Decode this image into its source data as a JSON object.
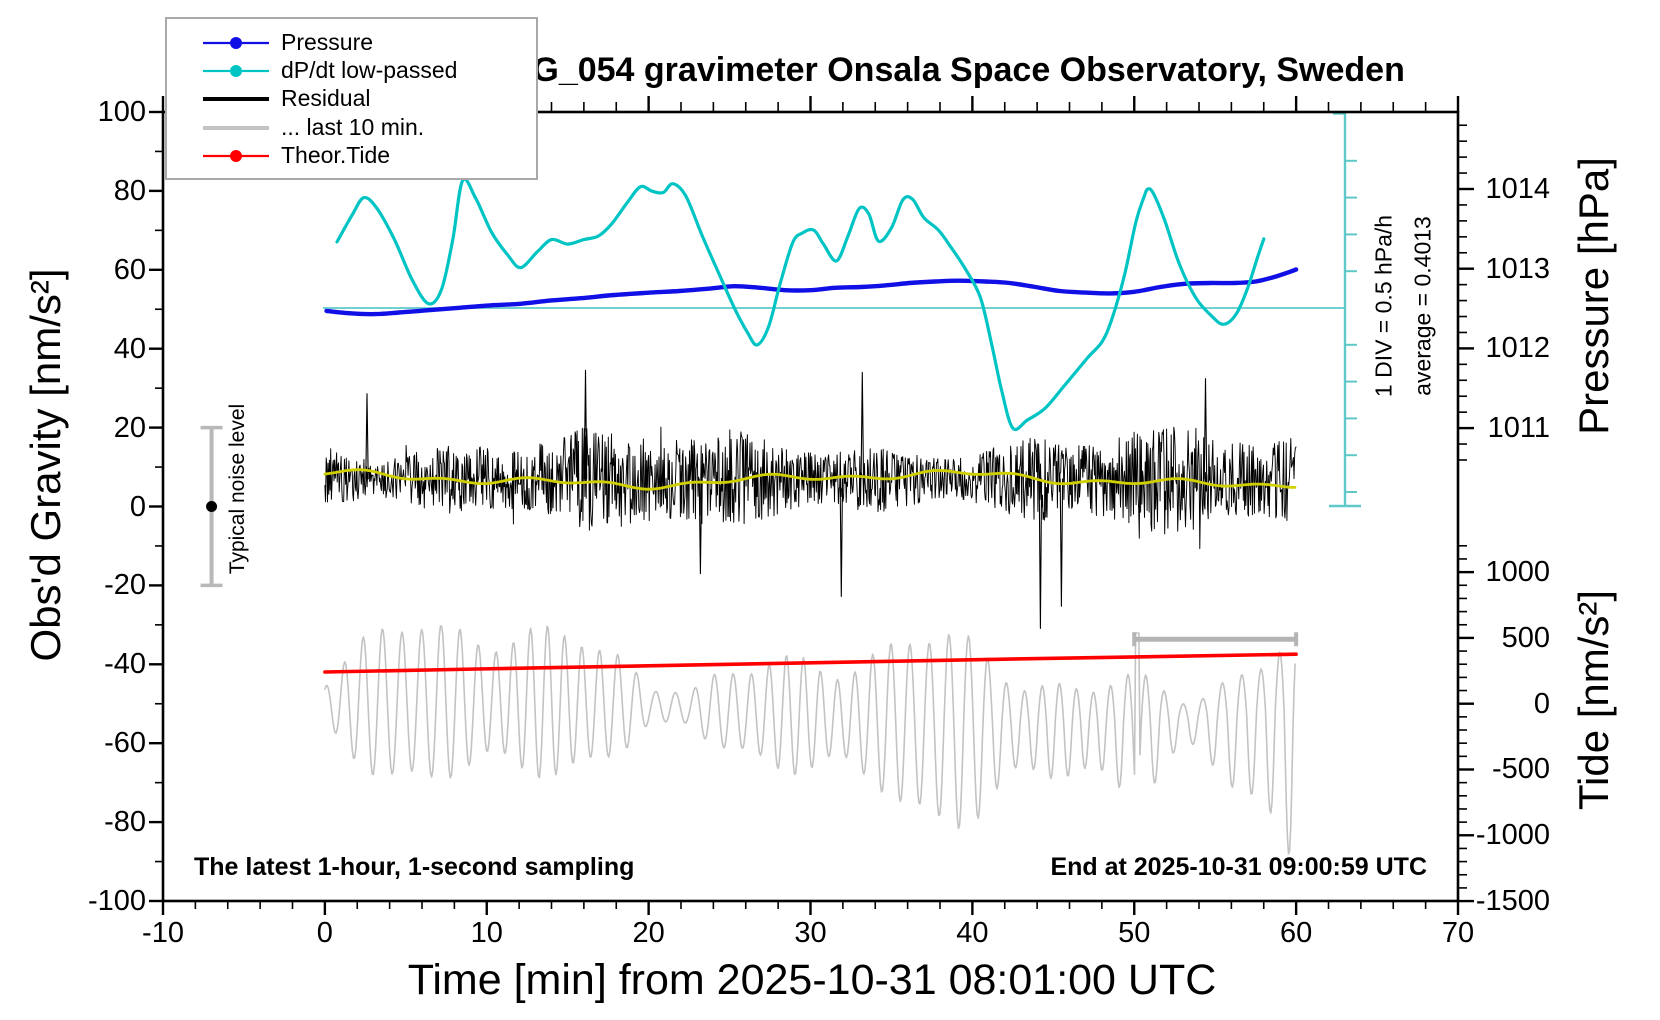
{
  "title": "SCG_054 gravimeter Onsala Space Observatory, Sweden",
  "annotations": {
    "noise_label": "Typical noise level",
    "div_label": "1 DIV = 0.5 hPa/h",
    "avg_label": "average = 0.4013",
    "sampling_note": "The latest 1-hour, 1-second sampling",
    "end_note": "End at 2025-10-31 09:00:59 UTC"
  },
  "legend": {
    "items": [
      {
        "label": "Pressure",
        "color": "#1010e6",
        "marker": "line+dot",
        "width": 2.2
      },
      {
        "label": "dP/dt low-passed",
        "color": "#00c4c4",
        "marker": "line+dot",
        "width": 2.2
      },
      {
        "label": "Residual",
        "color": "#000000",
        "marker": "line",
        "width": 4
      },
      {
        "label": "... last 10 min.",
        "color": "#c3c3c3",
        "marker": "line",
        "width": 4
      },
      {
        "label": "Theor.Tide",
        "color": "#ff0000",
        "marker": "line+dot",
        "width": 2.2
      }
    ]
  },
  "axes": {
    "x": {
      "label": "Time [min] from 2025-10-31 08:01:00 UTC",
      "min": -10,
      "max": 70,
      "major_ticks": [
        -10,
        0,
        10,
        20,
        30,
        40,
        50,
        60,
        70
      ],
      "minor_step": 2
    },
    "gravity": {
      "label": "Obs'd Gravity [nm/s²]",
      "min": -100,
      "max": 100,
      "major_ticks": [
        100,
        80,
        60,
        40,
        20,
        0,
        -20,
        -40,
        -60,
        -80,
        -100
      ],
      "minor_step": 10
    },
    "pressure": {
      "label": "Pressure [hPa]",
      "major_ticks": [
        1014,
        1013,
        1012,
        1011
      ],
      "minor_step": 0.2
    },
    "tide": {
      "label": "Tide [nm/s²]",
      "major_ticks": [
        1000,
        500,
        0,
        -500,
        -1000,
        -1500
      ],
      "minor_step": 100
    }
  },
  "chart_data": {
    "type": "line",
    "title": "SCG_054 gravimeter Onsala Space Observatory, Sweden",
    "xlabel": "Time [min] from 2025-10-31 08:01:00 UTC",
    "x_range": [
      -10,
      70
    ],
    "data_time_span_min": [
      0,
      60
    ],
    "grid": false,
    "legend_position": "top-left",
    "dpdt_scale": {
      "div_value_hPa_per_h": 0.5,
      "average_hPa_per_h": 0.4013,
      "note": "cyan ruler on right side of plot, reference line drawn at the average"
    },
    "noise_bar": {
      "t_min": -7,
      "gravity_center": 0,
      "gravity_range": [
        -20,
        20
      ],
      "label": "Typical noise level"
    },
    "duration_bar": {
      "t_range": [
        50,
        60
      ],
      "tide_level": 490,
      "note": "gray bar marking the last 10 minutes"
    },
    "series": [
      {
        "name": "Pressure",
        "axis": "pressure_hPa",
        "color": "#1010e6",
        "points": [
          [
            0.1,
            1012.47
          ],
          [
            1.6,
            1012.44
          ],
          [
            3.1,
            1012.43
          ],
          [
            4.6,
            1012.45
          ],
          [
            6.5,
            1012.48
          ],
          [
            8.3,
            1012.51
          ],
          [
            10.2,
            1012.54
          ],
          [
            12.1,
            1012.56
          ],
          [
            13.9,
            1012.6
          ],
          [
            15.8,
            1012.63
          ],
          [
            17.9,
            1012.67
          ],
          [
            20.1,
            1012.7
          ],
          [
            21.9,
            1012.72
          ],
          [
            23.8,
            1012.75
          ],
          [
            25.3,
            1012.78
          ],
          [
            26.9,
            1012.76
          ],
          [
            28.4,
            1012.73
          ],
          [
            30.0,
            1012.73
          ],
          [
            31.5,
            1012.76
          ],
          [
            33.1,
            1012.77
          ],
          [
            34.6,
            1012.79
          ],
          [
            36.1,
            1012.82
          ],
          [
            37.7,
            1012.84
          ],
          [
            39.2,
            1012.85
          ],
          [
            40.8,
            1012.84
          ],
          [
            42.3,
            1012.82
          ],
          [
            43.9,
            1012.77
          ],
          [
            45.4,
            1012.72
          ],
          [
            47.0,
            1012.7
          ],
          [
            48.5,
            1012.69
          ],
          [
            50.0,
            1012.71
          ],
          [
            51.6,
            1012.77
          ],
          [
            53.1,
            1012.81
          ],
          [
            54.7,
            1012.82
          ],
          [
            56.2,
            1012.82
          ],
          [
            57.5,
            1012.84
          ],
          [
            58.7,
            1012.9
          ],
          [
            59.6,
            1012.96
          ],
          [
            60.0,
            1012.99
          ]
        ]
      },
      {
        "name": "dP/dt low-passed",
        "axis": "hPa_per_h",
        "color": "#00c4c4",
        "points": [
          [
            0.75,
            1.3
          ],
          [
            1.7,
            1.67
          ],
          [
            2.4,
            1.9
          ],
          [
            3.2,
            1.76
          ],
          [
            4.3,
            1.33
          ],
          [
            5.4,
            0.78
          ],
          [
            6.4,
            0.46
          ],
          [
            7.2,
            0.65
          ],
          [
            7.9,
            1.33
          ],
          [
            8.5,
            2.13
          ],
          [
            9.3,
            1.9
          ],
          [
            10.3,
            1.43
          ],
          [
            11.3,
            1.12
          ],
          [
            12.1,
            0.95
          ],
          [
            13.1,
            1.16
          ],
          [
            14.0,
            1.33
          ],
          [
            15.0,
            1.27
          ],
          [
            16.0,
            1.33
          ],
          [
            16.9,
            1.38
          ],
          [
            17.7,
            1.54
          ],
          [
            18.7,
            1.84
          ],
          [
            19.5,
            2.05
          ],
          [
            20.2,
            1.99
          ],
          [
            20.9,
            1.97
          ],
          [
            21.5,
            2.09
          ],
          [
            22.3,
            1.92
          ],
          [
            23.3,
            1.39
          ],
          [
            24.3,
            0.89
          ],
          [
            25.3,
            0.4
          ],
          [
            26.1,
            0.07
          ],
          [
            26.7,
            -0.1
          ],
          [
            27.4,
            0.14
          ],
          [
            28.1,
            0.71
          ],
          [
            28.9,
            1.29
          ],
          [
            29.5,
            1.42
          ],
          [
            30.2,
            1.46
          ],
          [
            30.8,
            1.27
          ],
          [
            31.6,
            1.04
          ],
          [
            32.3,
            1.37
          ],
          [
            33.0,
            1.75
          ],
          [
            33.6,
            1.68
          ],
          [
            34.2,
            1.31
          ],
          [
            35.0,
            1.49
          ],
          [
            35.7,
            1.87
          ],
          [
            36.3,
            1.88
          ],
          [
            37.0,
            1.63
          ],
          [
            37.9,
            1.46
          ],
          [
            38.7,
            1.22
          ],
          [
            39.6,
            0.92
          ],
          [
            40.5,
            0.54
          ],
          [
            41.2,
            -0.1
          ],
          [
            41.8,
            -0.71
          ],
          [
            42.5,
            -1.23
          ],
          [
            43.4,
            -1.12
          ],
          [
            44.5,
            -0.96
          ],
          [
            45.7,
            -0.65
          ],
          [
            47.1,
            -0.28
          ],
          [
            48.0,
            -0.06
          ],
          [
            48.6,
            0.24
          ],
          [
            49.4,
            0.85
          ],
          [
            50.1,
            1.57
          ],
          [
            50.6,
            1.91
          ],
          [
            50.85,
            2.02
          ],
          [
            51.2,
            1.95
          ],
          [
            51.9,
            1.58
          ],
          [
            52.8,
            0.99
          ],
          [
            53.8,
            0.54
          ],
          [
            54.7,
            0.31
          ],
          [
            55.5,
            0.18
          ],
          [
            56.3,
            0.32
          ],
          [
            57.0,
            0.67
          ],
          [
            57.6,
            1.08
          ],
          [
            58.0,
            1.34
          ]
        ]
      },
      {
        "name": "Residual",
        "axis": "gravity_nms2",
        "color": "#000000",
        "stats": {
          "mean": 7,
          "typical_spread": 12,
          "min": -31,
          "max": 35,
          "description": "1-second residual noise band, 0-60 min"
        },
        "spikes": [
          [
            2.6,
            28.6
          ],
          [
            16.1,
            34.5
          ],
          [
            23.2,
            -17.0
          ],
          [
            31.9,
            -22.8
          ],
          [
            33.2,
            34.0
          ],
          [
            44.2,
            -30.9
          ],
          [
            45.5,
            -25.3
          ],
          [
            54.4,
            32.4
          ]
        ]
      },
      {
        "name": "Residual low-passed (yellow)",
        "axis": "gravity_nms2",
        "color": "#d0d000",
        "stats": {
          "mean": 6.9,
          "amplitude": 2
        }
      },
      {
        "name": "... last 10 min.",
        "axis": "tide_nms2",
        "color": "#c3c3c3",
        "stats": {
          "center": -65,
          "typical_amplitude": 450,
          "max_excursion": -1500,
          "description": "last 10 minutes of residual stretched over full width"
        }
      },
      {
        "name": "Theor.Tide",
        "axis": "tide_nms2",
        "color": "#ff0000",
        "points": [
          [
            0,
            241
          ],
          [
            15,
            277
          ],
          [
            30,
            311
          ],
          [
            45,
            345
          ],
          [
            60,
            376
          ]
        ]
      }
    ]
  }
}
